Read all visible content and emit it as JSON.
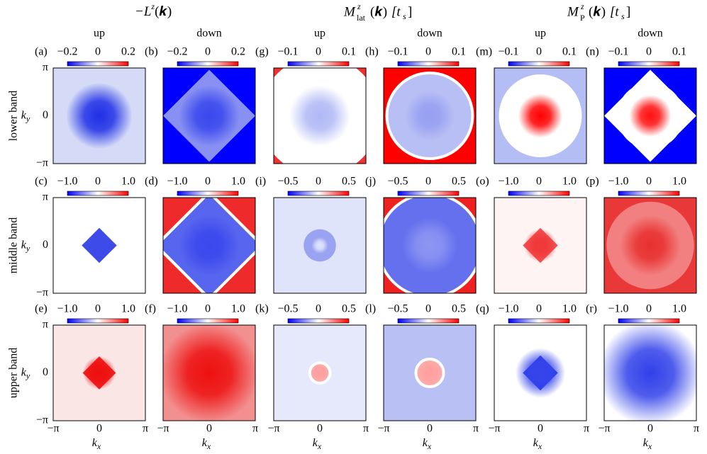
{
  "headers": [
    {
      "parts": [
        "−L",
        "z",
        "(𝒌)"
      ]
    },
    {
      "parts": [
        "M",
        "z",
        "lat",
        "(𝒌)",
        "[t",
        "s",
        "]"
      ]
    },
    {
      "parts": [
        "M",
        "z",
        "P",
        "(𝒌)",
        "[t",
        "s",
        "]"
      ]
    }
  ],
  "subheaders": [
    "up",
    "down",
    "up",
    "down",
    "up",
    "down"
  ],
  "rows": [
    "lower band",
    "middle band",
    "upper band"
  ],
  "y_axis": {
    "label": "k",
    "sub": "y",
    "ticks": [
      "π",
      "0",
      "−π"
    ]
  },
  "x_axis": {
    "label": "k",
    "sub": "x",
    "ticks": [
      "−π",
      "0",
      "π"
    ]
  },
  "panels": [
    {
      "label": "(a)",
      "ticks": [
        "−0.2",
        "0",
        "0.2"
      ]
    },
    {
      "label": "(b)",
      "ticks": [
        "−0.2",
        "0",
        "0.2"
      ]
    },
    {
      "label": "(g)",
      "ticks": [
        "−0.1",
        "0",
        "0.1"
      ]
    },
    {
      "label": "(h)",
      "ticks": [
        "−0.1",
        "0",
        "0.1"
      ]
    },
    {
      "label": "(m)",
      "ticks": [
        "−0.1",
        "0",
        "0.1"
      ]
    },
    {
      "label": "(n)",
      "ticks": [
        "−0.1",
        "0",
        "0.1"
      ]
    },
    {
      "label": "(c)",
      "ticks": [
        "−1.0",
        "0",
        "1.0"
      ]
    },
    {
      "label": "(d)",
      "ticks": [
        "−1.0",
        "0",
        "1.0"
      ]
    },
    {
      "label": "(i)",
      "ticks": [
        "−0.5",
        "0",
        "0.5"
      ]
    },
    {
      "label": "(j)",
      "ticks": [
        "−0.5",
        "0",
        "0.5"
      ]
    },
    {
      "label": "(o)",
      "ticks": [
        "−1.0",
        "0",
        "1.0"
      ]
    },
    {
      "label": "(p)",
      "ticks": [
        "−1.0",
        "0",
        "1.0"
      ]
    },
    {
      "label": "(e)",
      "ticks": [
        "−1.0",
        "0",
        "1.0"
      ]
    },
    {
      "label": "(f)",
      "ticks": [
        "−1.0",
        "0",
        "1.0"
      ]
    },
    {
      "label": "(k)",
      "ticks": [
        "−0.5",
        "0",
        "0.5"
      ]
    },
    {
      "label": "(l)",
      "ticks": [
        "−0.5",
        "0",
        "0.5"
      ]
    },
    {
      "label": "(q)",
      "ticks": [
        "−1.0",
        "0",
        "1.0"
      ]
    },
    {
      "label": "(r)",
      "ticks": [
        "−1.0",
        "0",
        "1.0"
      ]
    }
  ]
}
